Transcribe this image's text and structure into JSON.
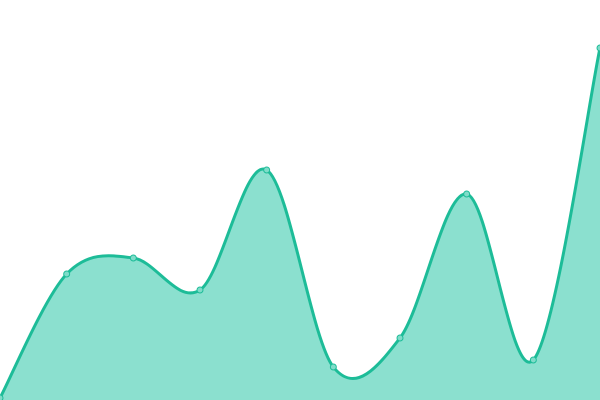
{
  "chart_data": {
    "type": "area",
    "title": "",
    "xlabel": "",
    "ylabel": "",
    "x": [
      0,
      1,
      2,
      3,
      4,
      5,
      6,
      7,
      8,
      9
    ],
    "series": [
      {
        "values": [
          2,
          126,
          142,
          110,
          230,
          33,
          62,
          206,
          40,
          352
        ]
      }
    ],
    "ylim": [
      0,
      400
    ],
    "grid": false,
    "axes_visible": false,
    "curve": "smooth",
    "colors": {
      "line": "#1dbc98",
      "fill": "#8be0cf",
      "point_fill": "#7fdcc9",
      "point_stroke": "#1dbc98"
    }
  }
}
